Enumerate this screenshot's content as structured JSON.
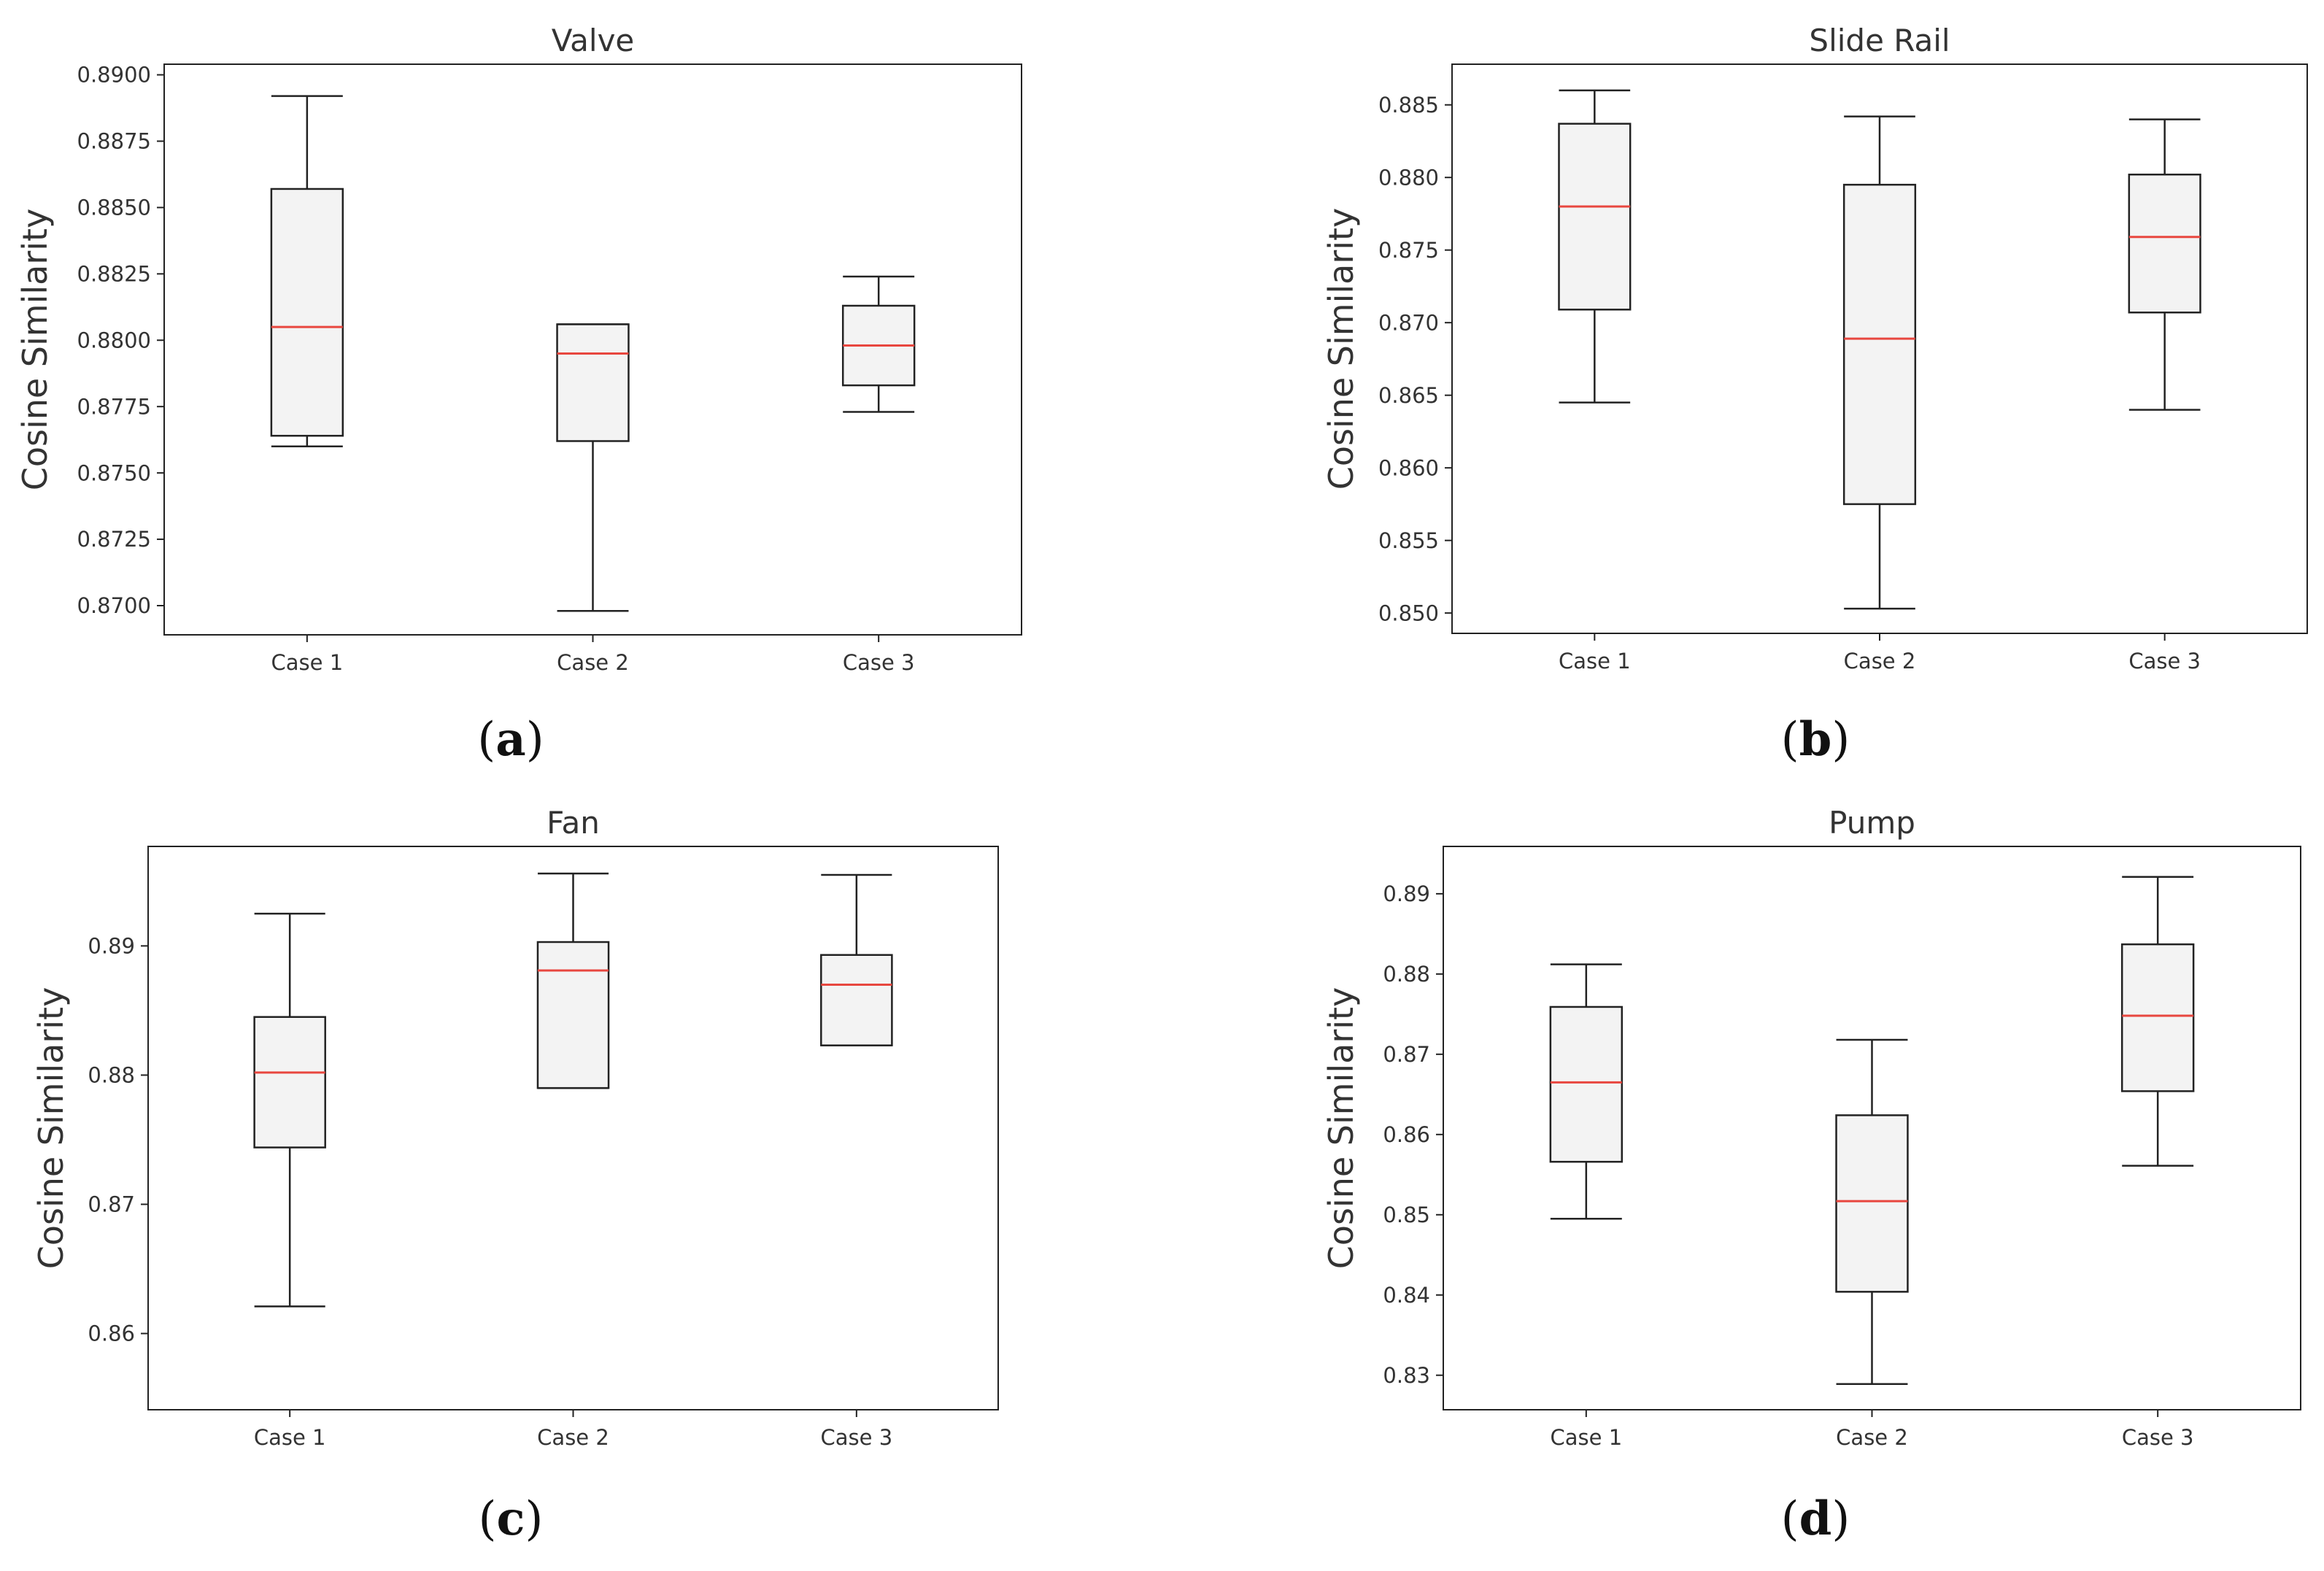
{
  "chart_data": [
    {
      "type": "box",
      "id": "a",
      "title": "Valve",
      "xlabel": "",
      "ylabel": "Cosine Similarity",
      "categories": [
        "Case 1",
        "Case 2",
        "Case 3"
      ],
      "ylim": [
        0.8689,
        0.8904
      ],
      "yticks": [
        0.87,
        0.8725,
        0.875,
        0.8775,
        0.88,
        0.8825,
        0.885,
        0.8875,
        0.89
      ],
      "ytick_labels": [
        "0.8700",
        "0.8725",
        "0.8750",
        "0.8775",
        "0.8800",
        "0.8825",
        "0.8850",
        "0.8875",
        "0.8900"
      ],
      "boxes": [
        {
          "whisker_low": 0.876,
          "q1": 0.8764,
          "median": 0.8805,
          "q3": 0.8857,
          "whisker_high": 0.8892
        },
        {
          "whisker_low": 0.8698,
          "q1": 0.8762,
          "median": 0.8795,
          "q3": 0.8806,
          "whisker_high": 0.8806
        },
        {
          "whisker_low": 0.8773,
          "q1": 0.8783,
          "median": 0.8798,
          "q3": 0.8813,
          "whisker_high": 0.8824
        }
      ],
      "caption": "a"
    },
    {
      "type": "box",
      "id": "b",
      "title": "Slide Rail",
      "xlabel": "",
      "ylabel": "Cosine Similarity",
      "categories": [
        "Case 1",
        "Case 2",
        "Case 3"
      ],
      "ylim": [
        0.8486,
        0.8878
      ],
      "yticks": [
        0.85,
        0.855,
        0.86,
        0.865,
        0.87,
        0.875,
        0.88,
        0.885
      ],
      "ytick_labels": [
        "0.850",
        "0.855",
        "0.860",
        "0.865",
        "0.870",
        "0.875",
        "0.880",
        "0.885"
      ],
      "boxes": [
        {
          "whisker_low": 0.8645,
          "q1": 0.8709,
          "median": 0.878,
          "q3": 0.8837,
          "whisker_high": 0.886
        },
        {
          "whisker_low": 0.8503,
          "q1": 0.8575,
          "median": 0.8689,
          "q3": 0.8795,
          "whisker_high": 0.8842
        },
        {
          "whisker_low": 0.864,
          "q1": 0.8707,
          "median": 0.8759,
          "q3": 0.8802,
          "whisker_high": 0.884
        }
      ],
      "caption": "b"
    },
    {
      "type": "box",
      "id": "c",
      "title": "Fan",
      "xlabel": "",
      "ylabel": "Cosine Similarity",
      "categories": [
        "Case 1",
        "Case 2",
        "Case 3"
      ],
      "ylim": [
        0.8541,
        0.8977
      ],
      "yticks": [
        0.86,
        0.87,
        0.88,
        0.89
      ],
      "ytick_labels": [
        "0.86",
        "0.87",
        "0.88",
        "0.89"
      ],
      "boxes": [
        {
          "whisker_low": 0.8621,
          "q1": 0.8744,
          "median": 0.8802,
          "q3": 0.8845,
          "whisker_high": 0.8925
        },
        {
          "whisker_low": 0.879,
          "q1": 0.879,
          "median": 0.8881,
          "q3": 0.8903,
          "whisker_high": 0.8956
        },
        {
          "whisker_low": 0.8823,
          "q1": 0.8823,
          "median": 0.887,
          "q3": 0.8893,
          "whisker_high": 0.8955
        }
      ],
      "caption": "c"
    },
    {
      "type": "box",
      "id": "d",
      "title": "Pump",
      "xlabel": "",
      "ylabel": "Cosine Similarity",
      "categories": [
        "Case 1",
        "Case 2",
        "Case 3"
      ],
      "ylim": [
        0.8257,
        0.8959
      ],
      "yticks": [
        0.83,
        0.84,
        0.85,
        0.86,
        0.87,
        0.88,
        0.89
      ],
      "ytick_labels": [
        "0.83",
        "0.84",
        "0.85",
        "0.86",
        "0.87",
        "0.88",
        "0.89"
      ],
      "boxes": [
        {
          "whisker_low": 0.8495,
          "q1": 0.8566,
          "median": 0.8665,
          "q3": 0.8759,
          "whisker_high": 0.8812
        },
        {
          "whisker_low": 0.8289,
          "q1": 0.8404,
          "median": 0.8517,
          "q3": 0.8624,
          "whisker_high": 0.8718
        },
        {
          "whisker_low": 0.8561,
          "q1": 0.8654,
          "median": 0.8748,
          "q3": 0.8837,
          "whisker_high": 0.8921
        }
      ],
      "caption": "d"
    }
  ],
  "colors": {
    "box_fill": "#f3f3f3",
    "box_edge": "#222222",
    "median": "#e8473f",
    "axis": "#222222",
    "text": "#333333"
  }
}
